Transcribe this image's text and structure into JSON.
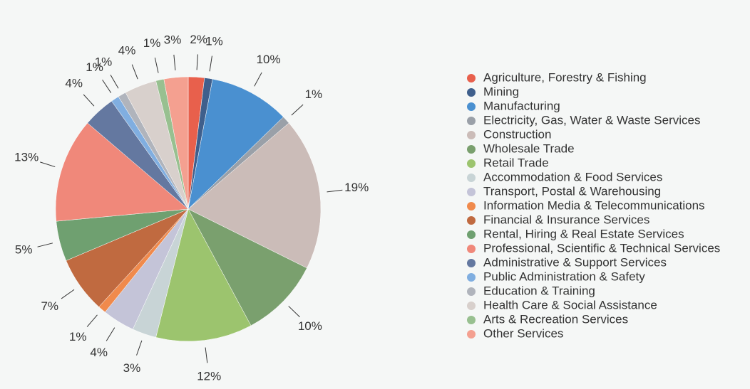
{
  "chart_data": {
    "type": "pie",
    "categories": [
      "Agriculture, Forestry & Fishing",
      "Mining",
      "Manufacturing",
      "Electricity, Gas, Water & Waste Services",
      "Construction",
      "Wholesale Trade",
      "Retail Trade",
      "Accommodation & Food Services",
      "Transport, Postal & Warehousing",
      "Information Media & Telecommunications",
      "Financial & Insurance Services",
      "Rental, Hiring & Real Estate Services",
      "Professional, Scientific & Technical Services",
      "Administrative & Support Services",
      "Public Administration & Safety",
      "Education & Training",
      "Health Care & Social Assistance",
      "Arts & Recreation Services",
      "Other Services"
    ],
    "values": [
      2,
      1,
      10,
      1,
      19,
      10,
      12,
      3,
      4,
      1,
      7,
      5,
      13,
      4,
      1,
      1,
      4,
      1,
      3
    ],
    "value_labels": [
      "2%",
      "1%",
      "10%",
      "1%",
      "19%",
      "10%",
      "12%",
      "3%",
      "4%",
      "1%",
      "7%",
      "5%",
      "13%",
      "4%",
      "1%",
      "1%",
      "4%",
      "1%",
      "3%"
    ],
    "colors": [
      "#e8604c",
      "#3f5f8c",
      "#4a90d0",
      "#9aa0a8",
      "#cbbcb8",
      "#7aa06e",
      "#9cc46e",
      "#c8d4d6",
      "#c4c4d8",
      "#f08a4c",
      "#c06a40",
      "#6fa070",
      "#f0887a",
      "#6478a0",
      "#80aee0",
      "#b0b4bc",
      "#d8d0cc",
      "#98c090",
      "#f4a090"
    ],
    "legend": "right"
  }
}
